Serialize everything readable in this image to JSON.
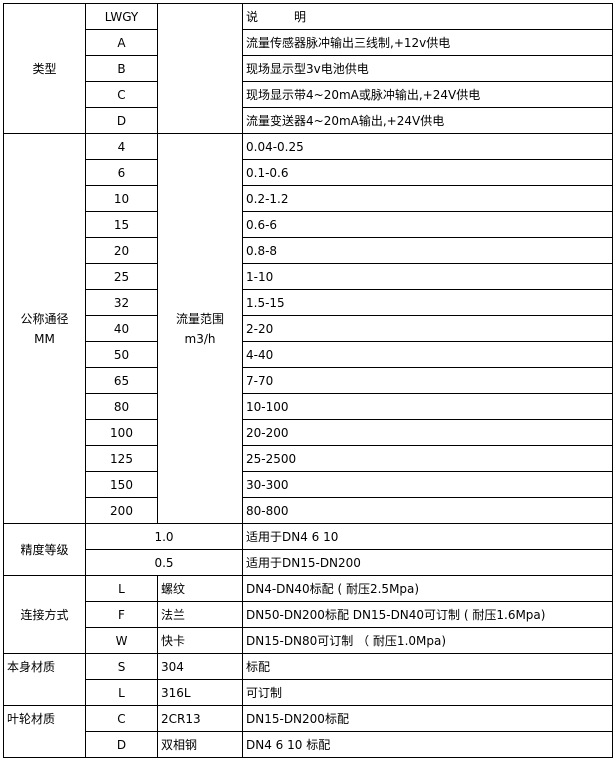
{
  "type_section": {
    "label": "类型",
    "header_code": "LWGY",
    "header_desc": "说　　　明",
    "rows": [
      {
        "code": "A",
        "desc": "流量传感器脉冲输出三线制,+12v供电"
      },
      {
        "code": "B",
        "desc": "现场显示型3v电池供电"
      },
      {
        "code": "C",
        "desc": "现场显示带4~20mA或脉冲输出,+24V供电"
      },
      {
        "code": "D",
        "desc": "流量变送器4~20mA输出,+24V供电"
      }
    ]
  },
  "diameter_section": {
    "label_line1": "公称通径",
    "label_line2": "MM",
    "range_label_line1": "流量范围",
    "range_label_line2": "m3/h",
    "rows": [
      {
        "dn": "4",
        "range": "0.04-0.25"
      },
      {
        "dn": "6",
        "range": "0.1-0.6"
      },
      {
        "dn": "10",
        "range": "0.2-1.2"
      },
      {
        "dn": "15",
        "range": "0.6-6"
      },
      {
        "dn": "20",
        "range": "0.8-8"
      },
      {
        "dn": "25",
        "range": "1-10"
      },
      {
        "dn": "32",
        "range": "1.5-15"
      },
      {
        "dn": "40",
        "range": "2-20"
      },
      {
        "dn": "50",
        "range": "4-40"
      },
      {
        "dn": "65",
        "range": "7-70"
      },
      {
        "dn": "80",
        "range": "10-100"
      },
      {
        "dn": "100",
        "range": "20-200"
      },
      {
        "dn": "125",
        "range": "25-2500"
      },
      {
        "dn": "150",
        "range": "30-300"
      },
      {
        "dn": "200",
        "range": "80-800"
      }
    ]
  },
  "accuracy_section": {
    "label": "精度等级",
    "rows": [
      {
        "grade": "1.0",
        "desc": "适用于DN4  6  10"
      },
      {
        "grade": "0.5",
        "desc": "适用于DN15-DN200"
      }
    ]
  },
  "connection_section": {
    "label": "连接方式",
    "rows": [
      {
        "code": "L",
        "name": "螺纹",
        "desc": "DN4-DN40标配 ( 耐压2.5Mpa)"
      },
      {
        "code": "F",
        "name": "法兰",
        "desc": "DN50-DN200标配 DN15-DN40可订制 ( 耐压1.6Mpa)"
      },
      {
        "code": "W",
        "name": "快卡",
        "desc": "DN15-DN80可订制 （ 耐压1.0Mpa)"
      }
    ]
  },
  "body_material_section": {
    "label": "本身材质",
    "rows": [
      {
        "code": "S",
        "name": "304",
        "desc": "标配"
      },
      {
        "code": "L",
        "name": "316L",
        "desc": "可订制"
      }
    ]
  },
  "impeller_material_section": {
    "label": "叶轮材质",
    "rows": [
      {
        "code": "C",
        "name": "2CR13",
        "desc": "DN15-DN200标配"
      },
      {
        "code": "D",
        "name": "双相钢",
        "desc": "DN4 6 10 标配"
      }
    ]
  }
}
